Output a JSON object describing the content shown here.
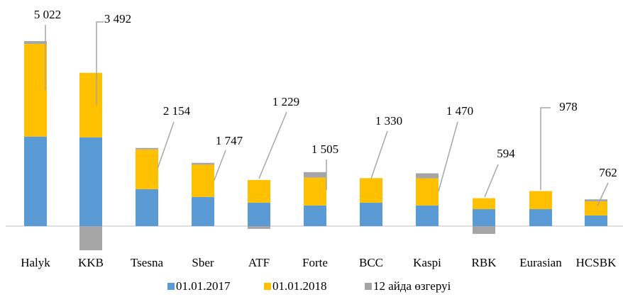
{
  "chart_data": {
    "type": "bar",
    "categories": [
      "Halyk",
      "KKB",
      "Tsesna",
      "Sber",
      "ATF",
      "Forte",
      "BCC",
      "Kaspi",
      "RBK",
      "Eurasian",
      "HCSBK"
    ],
    "series": [
      {
        "name": "01.01.2017",
        "color": "#5b9bd5",
        "values": [
          4850,
          4810,
          2000,
          1580,
          1270,
          1120,
          1270,
          1120,
          920,
          920,
          580
        ]
      },
      {
        "name": "01.01.2018",
        "color": "#ffc000",
        "values": [
          5022,
          3492,
          2154,
          1747,
          1229,
          1505,
          1330,
          1470,
          594,
          978,
          762
        ],
        "value_labels": [
          "5 022",
          "3 492",
          "2 154",
          "1 747",
          "1 229",
          "1 505",
          "1 330",
          "1 470",
          "594",
          "978",
          "762"
        ]
      },
      {
        "name": "12 айда өзгеруі",
        "color": "#a5a5a5",
        "values": [
          150,
          -1310,
          80,
          100,
          -150,
          300,
          0,
          270,
          -420,
          0,
          110
        ]
      }
    ],
    "stacked": true
  }
}
